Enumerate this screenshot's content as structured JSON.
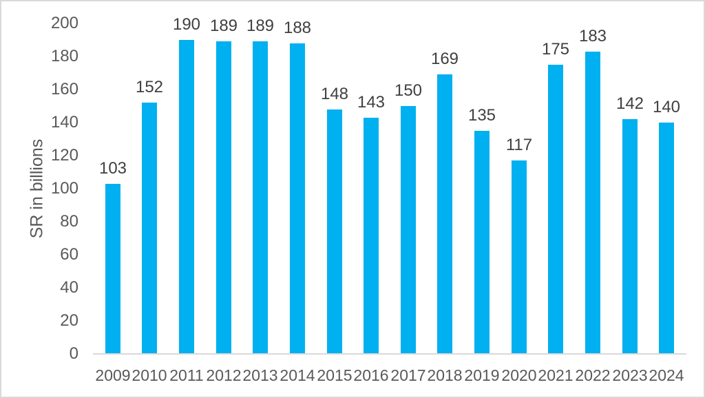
{
  "chart_data": {
    "type": "bar",
    "title": "",
    "categories": [
      "2009",
      "2010",
      "2011",
      "2012",
      "2013",
      "2014",
      "2015",
      "2016",
      "2017",
      "2018",
      "2019",
      "2020",
      "2021",
      "2022",
      "2023",
      "2024"
    ],
    "values": [
      103,
      152,
      190,
      189,
      189,
      188,
      148,
      143,
      150,
      169,
      135,
      117,
      175,
      183,
      142,
      140
    ],
    "xlabel": "",
    "ylabel": "SR in billions",
    "ylim": [
      0,
      200
    ],
    "yticks": [
      0,
      20,
      40,
      60,
      80,
      100,
      120,
      140,
      160,
      180,
      200
    ],
    "grid": false,
    "legend": false,
    "data_labels": true,
    "colors": {
      "bar": "#00B0F0",
      "axis_line": "#D9D9D9",
      "frame_border": "#D9D9D9",
      "tick_label": "#595959",
      "data_label": "#404040",
      "background": "#FFFFFF"
    }
  }
}
